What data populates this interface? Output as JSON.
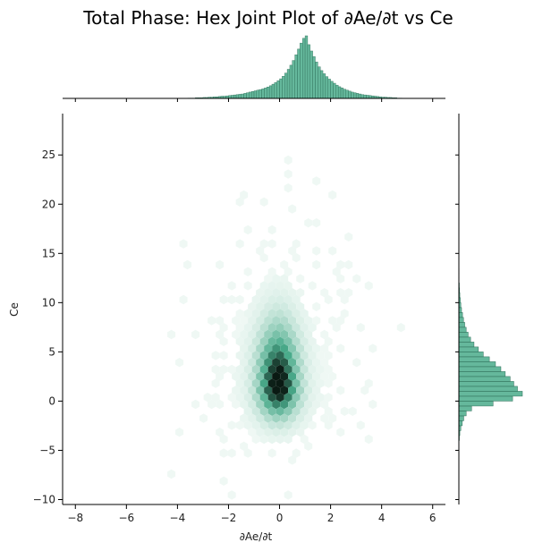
{
  "chart_data": {
    "type": "hexbin-joint",
    "title": "Total Phase: Hex Joint Plot of ∂Ae/∂t vs Ce",
    "xlabel": "∂Ae/∂t",
    "ylabel": "Ce",
    "xlim": [
      -8.5,
      6.5
    ],
    "ylim": [
      -10.5,
      29.2
    ],
    "xticks": [
      -8,
      -6,
      -4,
      -2,
      0,
      2,
      4,
      6
    ],
    "yticks": [
      -10,
      -5,
      0,
      5,
      10,
      15,
      20,
      25
    ],
    "color": "#4aab8b",
    "dark_color": "#0a1a13",
    "marginal_x": {
      "type": "histogram",
      "note_bins_start": -3.6,
      "bin_width": 0.1,
      "counts": [
        1,
        1,
        1,
        2,
        2,
        2,
        3,
        3,
        4,
        4,
        5,
        5,
        6,
        7,
        7,
        8,
        9,
        10,
        11,
        12,
        13,
        14,
        16,
        18,
        20,
        22,
        24,
        26,
        28,
        30,
        33,
        36,
        40,
        45,
        50,
        56,
        62,
        70,
        80,
        92,
        105,
        120,
        138,
        156,
        175,
        190,
        198,
        170,
        150,
        132,
        115,
        100,
        88,
        78,
        69,
        61,
        54,
        48,
        42,
        37,
        33,
        29,
        26,
        23,
        20,
        18,
        16,
        14,
        12,
        11,
        10,
        9,
        8,
        7,
        6,
        5,
        4,
        4,
        3,
        3,
        2,
        2,
        1,
        1
      ]
    },
    "marginal_y": {
      "type": "histogram",
      "note_bins_start": -4.0,
      "bin_width": 0.5,
      "counts": [
        2,
        4,
        8,
        14,
        20,
        30,
        52,
        140,
        220,
        260,
        240,
        225,
        210,
        190,
        172,
        150,
        125,
        100,
        80,
        62,
        48,
        38,
        30,
        24,
        19,
        15,
        11,
        8,
        6,
        4,
        3,
        2,
        1,
        1,
        1,
        0,
        0,
        0,
        0,
        0,
        0,
        0,
        0,
        0,
        0,
        0,
        0,
        0,
        0,
        0,
        0,
        0,
        0,
        1,
        0,
        0,
        1
      ]
    },
    "hexbin": {
      "center": [
        -0.05,
        1.5
      ],
      "spread_x": 0.55,
      "spread_y": 2.6
    }
  }
}
